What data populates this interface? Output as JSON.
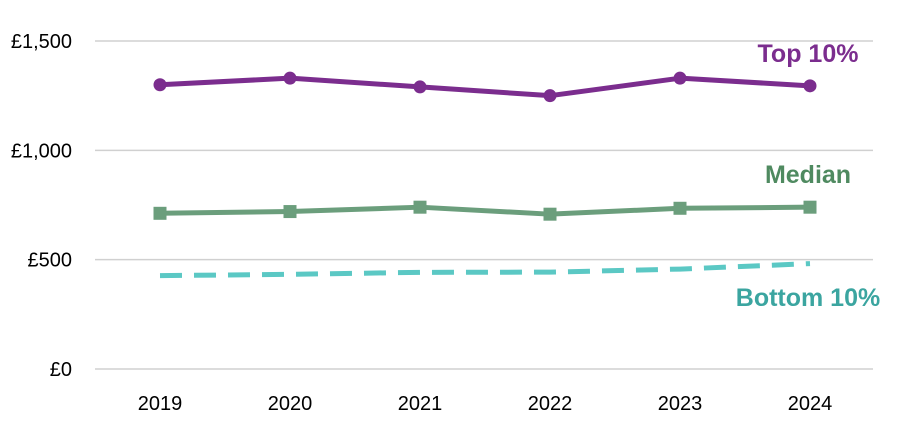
{
  "chart_data": {
    "type": "line",
    "title": "",
    "xlabel": "",
    "ylabel": "",
    "categories": [
      "2019",
      "2020",
      "2021",
      "2022",
      "2023",
      "2024"
    ],
    "ylim": [
      0,
      1500
    ],
    "yticks": [
      {
        "value": 0,
        "label": "£0"
      },
      {
        "value": 500,
        "label": "£500"
      },
      {
        "value": 1000,
        "label": "£1,000"
      },
      {
        "value": 1500,
        "label": "£1,500"
      }
    ],
    "grid": true,
    "legend": "direct labels",
    "series": [
      {
        "name": "Top 10%",
        "color": "#7b2d8e",
        "marker": "circle",
        "line_style": "solid",
        "values": [
          1300,
          1330,
          1290,
          1250,
          1330,
          1295
        ]
      },
      {
        "name": "Median",
        "color": "#6b9e7c",
        "marker": "square",
        "line_style": "solid",
        "values": [
          712,
          720,
          740,
          708,
          735,
          740
        ]
      },
      {
        "name": "Bottom 10%",
        "color": "#5bc8c4",
        "marker": "none",
        "line_style": "dashed",
        "values": [
          427,
          433,
          442,
          443,
          457,
          482
        ]
      }
    ]
  },
  "colors": {
    "top_label": "#7b2d8e",
    "median_label": "#4f8a60",
    "bottom_label": "#3ba5a0"
  }
}
